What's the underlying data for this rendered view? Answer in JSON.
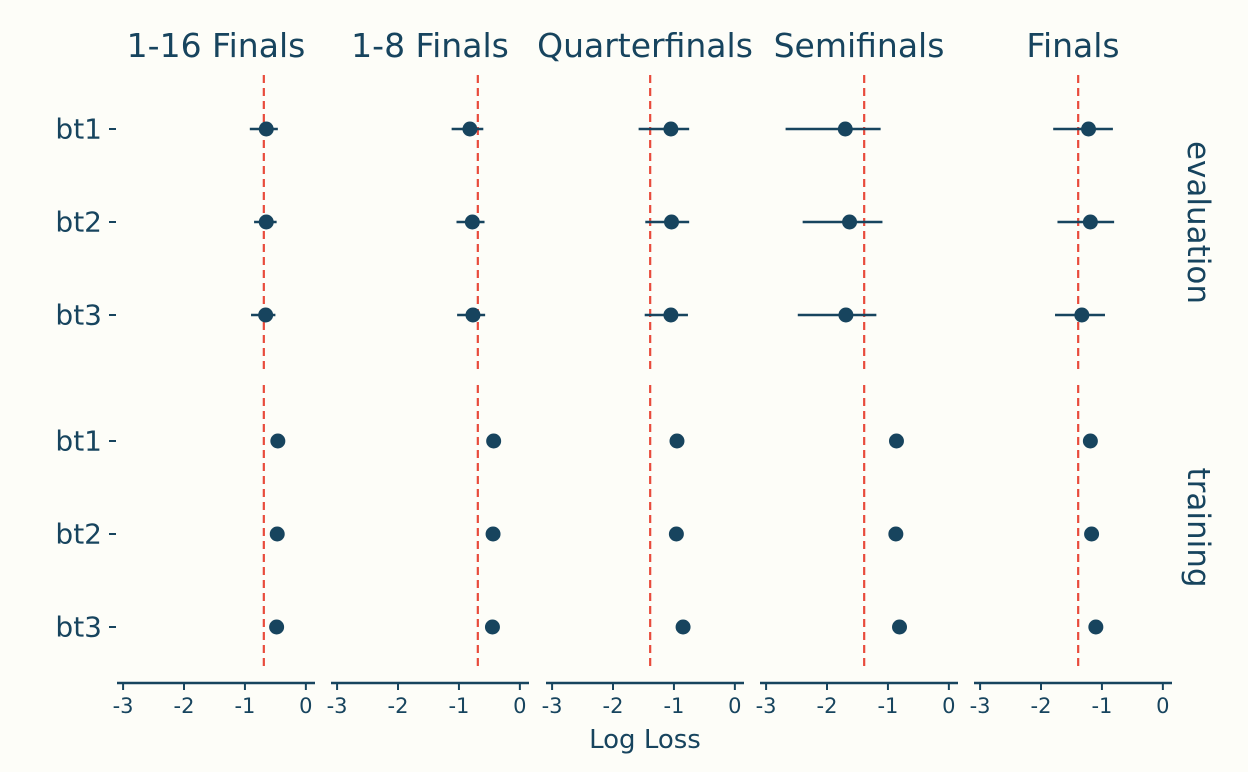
{
  "chart_data": {
    "type": "scatter",
    "subtype": "faceted point-range (dot with error bars)",
    "xlabel": "Log Loss",
    "ylabel": "",
    "xlim": [
      -3.1,
      0.15
    ],
    "x_ticks": [
      -3,
      -2,
      -1,
      0
    ],
    "x_tick_labels": [
      "-3",
      "-2",
      "-1",
      "0"
    ],
    "grid": false,
    "legend": "none",
    "columns": [
      "1-16 Finals",
      "1-8 Finals",
      "Quarterfinals",
      "Semifinals",
      "Finals"
    ],
    "rows": [
      "evaluation",
      "training"
    ],
    "categories": [
      "bt1",
      "bt2",
      "bt3"
    ],
    "reference_lines": [
      -0.69,
      -0.69,
      -1.39,
      -1.39,
      -1.39
    ],
    "panels": {
      "evaluation": [
        [
          {
            "x": -0.65,
            "lo": -0.92,
            "hi": -0.46
          },
          {
            "x": -0.65,
            "lo": -0.85,
            "hi": -0.48
          },
          {
            "x": -0.66,
            "lo": -0.9,
            "hi": -0.5
          }
        ],
        [
          {
            "x": -0.82,
            "lo": -1.12,
            "hi": -0.6
          },
          {
            "x": -0.78,
            "lo": -1.04,
            "hi": -0.58
          },
          {
            "x": -0.77,
            "lo": -1.03,
            "hi": -0.57
          }
        ],
        [
          {
            "x": -1.05,
            "lo": -1.58,
            "hi": -0.75
          },
          {
            "x": -1.04,
            "lo": -1.47,
            "hi": -0.75
          },
          {
            "x": -1.05,
            "lo": -1.48,
            "hi": -0.77
          }
        ],
        [
          {
            "x": -1.7,
            "lo": -2.68,
            "hi": -1.12
          },
          {
            "x": -1.63,
            "lo": -2.4,
            "hi": -1.09
          },
          {
            "x": -1.69,
            "lo": -2.48,
            "hi": -1.19
          }
        ],
        [
          {
            "x": -1.22,
            "lo": -1.8,
            "hi": -0.82
          },
          {
            "x": -1.19,
            "lo": -1.73,
            "hi": -0.8
          },
          {
            "x": -1.33,
            "lo": -1.77,
            "hi": -0.95
          }
        ]
      ],
      "training": [
        [
          {
            "x": -0.46
          },
          {
            "x": -0.47
          },
          {
            "x": -0.48
          }
        ],
        [
          {
            "x": -0.43
          },
          {
            "x": -0.44
          },
          {
            "x": -0.45
          }
        ],
        [
          {
            "x": -0.95
          },
          {
            "x": -0.96
          },
          {
            "x": -0.85
          }
        ],
        [
          {
            "x": -0.86
          },
          {
            "x": -0.87
          },
          {
            "x": -0.81
          }
        ],
        [
          {
            "x": -1.19
          },
          {
            "x": -1.17
          },
          {
            "x": -1.1
          }
        ]
      ]
    },
    "colors": {
      "point": "#17445E",
      "reference_line": "#E84B3C",
      "text": "#17445E",
      "background": "#FDFDF8"
    }
  }
}
